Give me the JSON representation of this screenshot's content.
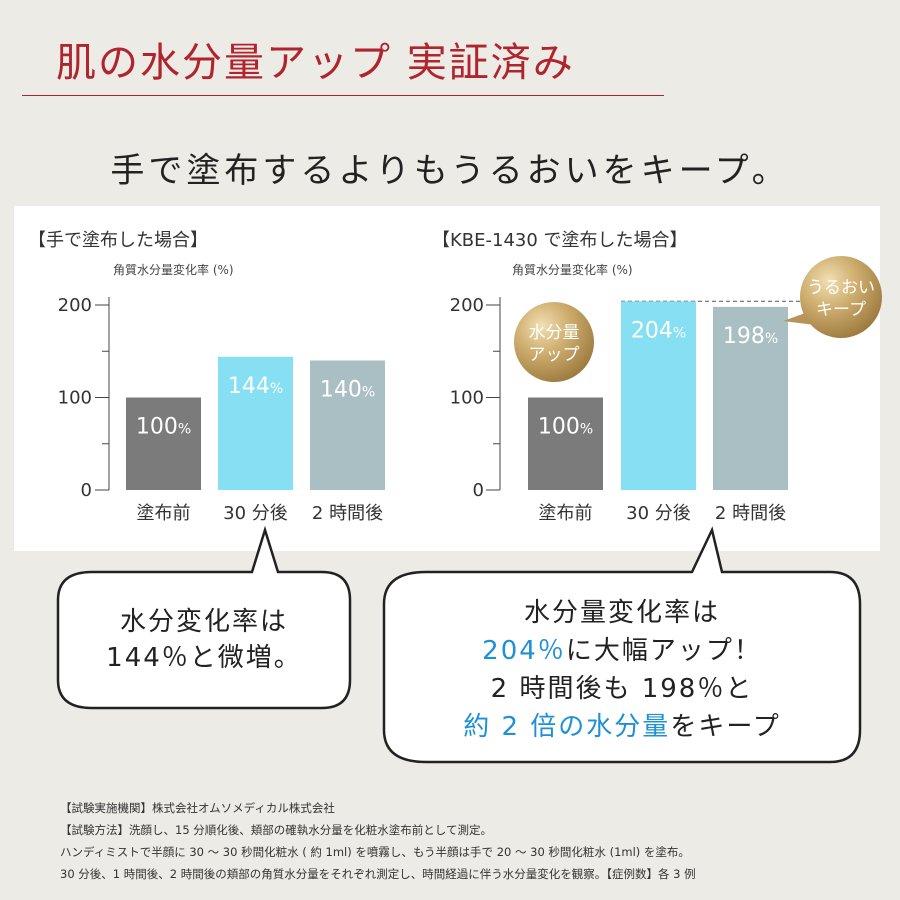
{
  "header": {
    "title": "肌の水分量アップ 実証済み",
    "subtitle": "手で塗布するよりもうるおいをキープ。"
  },
  "chart_data": [
    {
      "type": "bar",
      "title": "【手で塗布した場合】",
      "ylabel": "角質水分量変化率 (%)",
      "ylim": [
        0,
        200
      ],
      "yticks": [
        "0",
        "100",
        "200"
      ],
      "categories": [
        "塗布前",
        "30 分後",
        "2 時間後"
      ],
      "values": [
        100,
        144,
        140
      ],
      "value_labels": [
        "100",
        "144",
        "140"
      ],
      "unit": "%",
      "colors": [
        "#7b7b7b",
        "#86dff2",
        "#a9bfc3"
      ],
      "badges": []
    },
    {
      "type": "bar",
      "title": "【KBE-1430 で塗布した場合】",
      "ylabel": "角質水分量変化率 (%)",
      "ylim": [
        0,
        200
      ],
      "yticks": [
        "0",
        "100",
        "200"
      ],
      "categories": [
        "塗布前",
        "30 分後",
        "2 時間後"
      ],
      "values": [
        100,
        204,
        198
      ],
      "value_labels": [
        "100",
        "204",
        "198"
      ],
      "unit": "%",
      "colors": [
        "#7b7b7b",
        "#86dff2",
        "#a9bfc3"
      ],
      "reference_line": 204,
      "badges": [
        {
          "lines": [
            "水分量",
            "アップ"
          ]
        },
        {
          "lines": [
            "うるおい",
            "キープ"
          ]
        }
      ]
    }
  ],
  "callouts": {
    "left": {
      "lines": [
        "水分変化率は",
        "144％と微増。"
      ]
    },
    "right": {
      "line1": "水分量変化率は",
      "line2_highlight": "204％",
      "line2_rest": "に大幅アップ！",
      "line3": "2 時間後も 198％と",
      "line4_highlight": "約 2 倍の水分量",
      "line4_rest": "をキープ"
    }
  },
  "notes": [
    "【試験実施機関】株式会社オムソメディカル株式会社",
    "【試験方法】洗顔し、15 分順化後、頬部の確執水分量を化粧水塗布前として測定。",
    "ハンディミストで半顔に 30 ～ 30 秒間化粧水 ( 約 1ml) を噴霧し、もう半顔は手で 20 ～ 30 秒間化粧水 (1ml) を塗布。",
    "30 分後、1 時間後、2 時間後の頬部の角質水分量をそれぞれ測定し、時間経過に伴う水分量変化を観察。【症例数】各 3 例"
  ],
  "colors": {
    "title_red": "#b0242d",
    "highlight_blue": "#1e90d6",
    "gold": "#c9a86a",
    "background": "#edebe6"
  }
}
